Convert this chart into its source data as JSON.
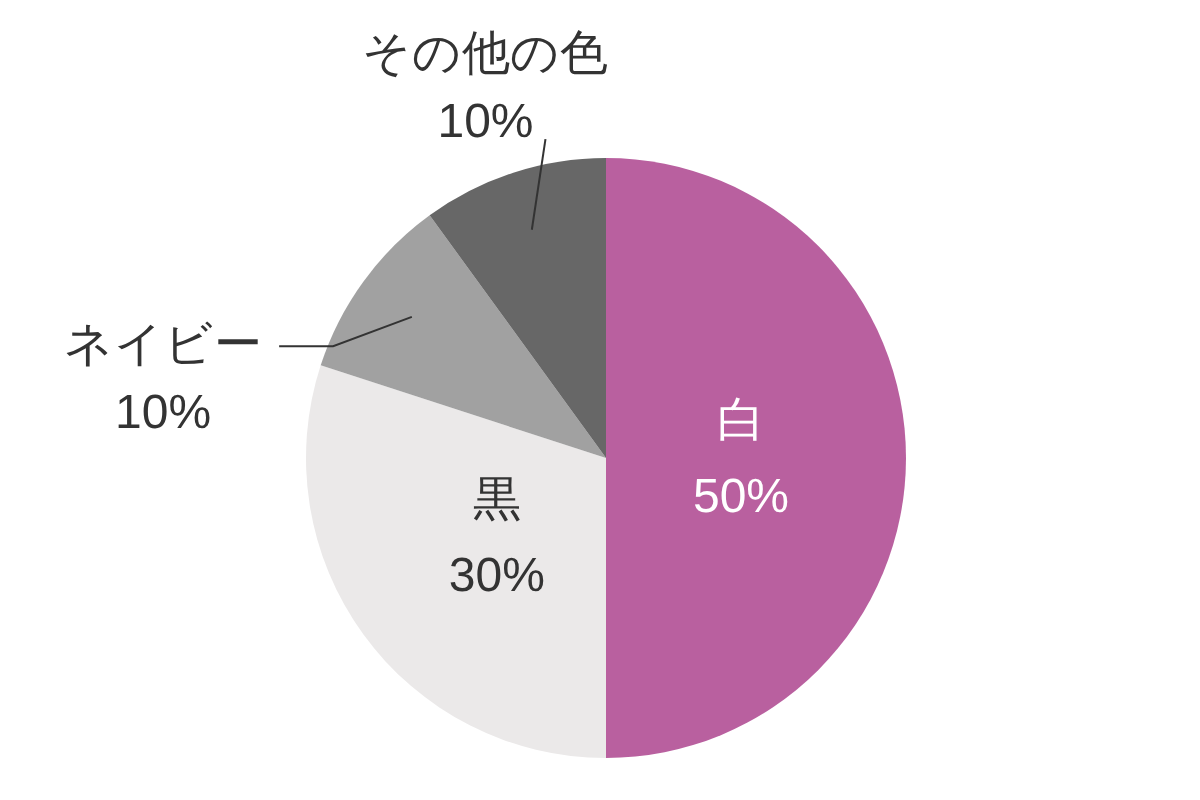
{
  "chart_data": {
    "type": "pie",
    "categories": [
      "白",
      "黒",
      "ネイビー",
      "その他の色"
    ],
    "values": [
      50,
      30,
      10,
      10
    ],
    "colors": [
      "#b9609f",
      "#ebe9e9",
      "#a1a1a1",
      "#676767"
    ],
    "value_labels": [
      "50%",
      "30%",
      "10%",
      "10%"
    ]
  }
}
